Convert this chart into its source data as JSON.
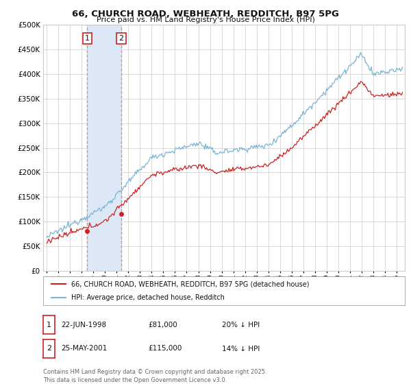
{
  "title": "66, CHURCH ROAD, WEBHEATH, REDDITCH, B97 5PG",
  "subtitle": "Price paid vs. HM Land Registry's House Price Index (HPI)",
  "ytick_values": [
    0,
    50000,
    100000,
    150000,
    200000,
    250000,
    300000,
    350000,
    400000,
    450000,
    500000
  ],
  "ylim": [
    0,
    500000
  ],
  "xlim_start": 1994.7,
  "xlim_end": 2025.7,
  "hpi_color": "#7ab3d4",
  "price_color": "#cc2222",
  "sale1_x": 1998.47,
  "sale1_y": 81000,
  "sale2_x": 2001.4,
  "sale2_y": 115000,
  "sale1_label": "1",
  "sale2_label": "2",
  "sale1_date": "22-JUN-1998",
  "sale1_price": "£81,000",
  "sale1_hpi": "20% ↓ HPI",
  "sale2_date": "25-MAY-2001",
  "sale2_price": "£115,000",
  "sale2_hpi": "14% ↓ HPI",
  "legend_line1": "66, CHURCH ROAD, WEBHEATH, REDDITCH, B97 5PG (detached house)",
  "legend_line2": "HPI: Average price, detached house, Redditch",
  "footer": "Contains HM Land Registry data © Crown copyright and database right 2025.\nThis data is licensed under the Open Government Licence v3.0.",
  "bg_color": "#ffffff",
  "grid_color": "#cccccc",
  "highlight_box_color": "#dce8f5",
  "dashed_color": "#dd8888"
}
